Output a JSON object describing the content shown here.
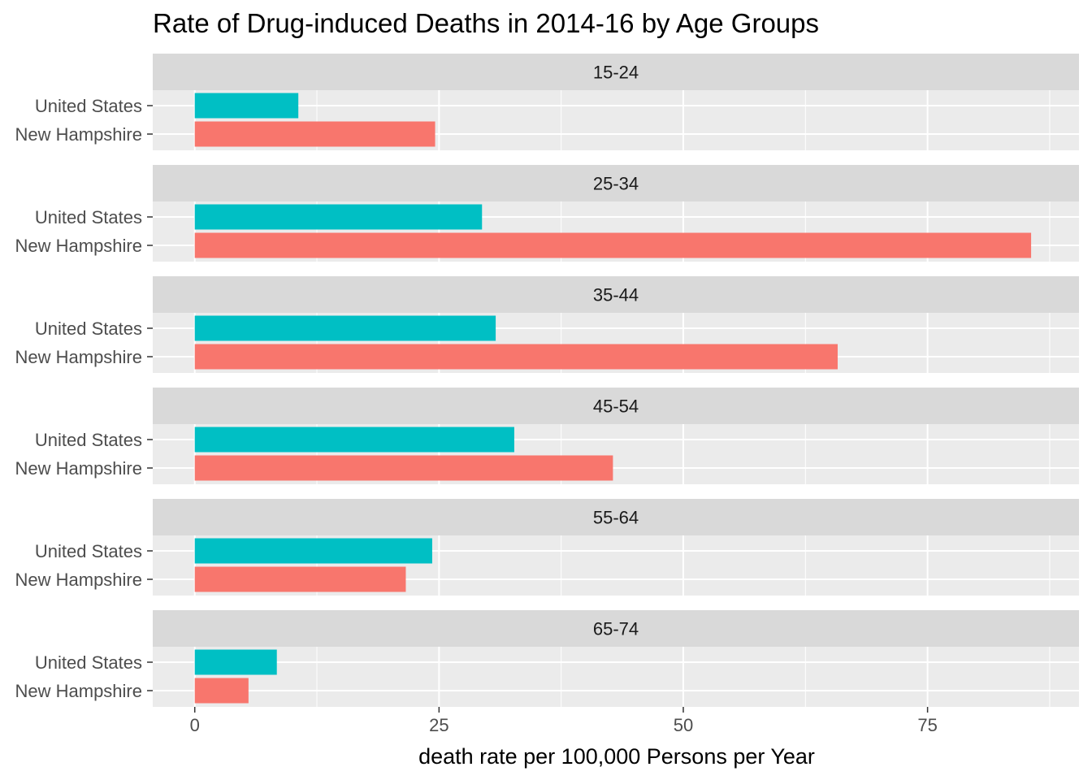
{
  "chart_data": {
    "type": "bar",
    "orientation": "horizontal",
    "title": "Rate of Drug-induced Deaths in 2014-16 by Age Groups",
    "xlabel": "death rate per 100,000 Persons per Year",
    "ylabel": "",
    "xlim": [
      -4.3,
      90.5
    ],
    "x_ticks": [
      0,
      25,
      50,
      75
    ],
    "grid": true,
    "legend": "none",
    "categories": [
      "United States",
      "New Hampshire"
    ],
    "colors": {
      "United States": "#00BFC4",
      "New Hampshire": "#F8766D"
    },
    "facets": [
      {
        "label": "15-24",
        "values": {
          "United States": 10.6,
          "New Hampshire": 24.6
        }
      },
      {
        "label": "25-34",
        "values": {
          "United States": 29.4,
          "New Hampshire": 85.6
        }
      },
      {
        "label": "35-44",
        "values": {
          "United States": 30.8,
          "New Hampshire": 65.8
        }
      },
      {
        "label": "45-54",
        "values": {
          "United States": 32.7,
          "New Hampshire": 42.8
        }
      },
      {
        "label": "55-64",
        "values": {
          "United States": 24.3,
          "New Hampshire": 21.6
        }
      },
      {
        "label": "65-74",
        "values": {
          "United States": 8.4,
          "New Hampshire": 5.5
        }
      }
    ]
  }
}
